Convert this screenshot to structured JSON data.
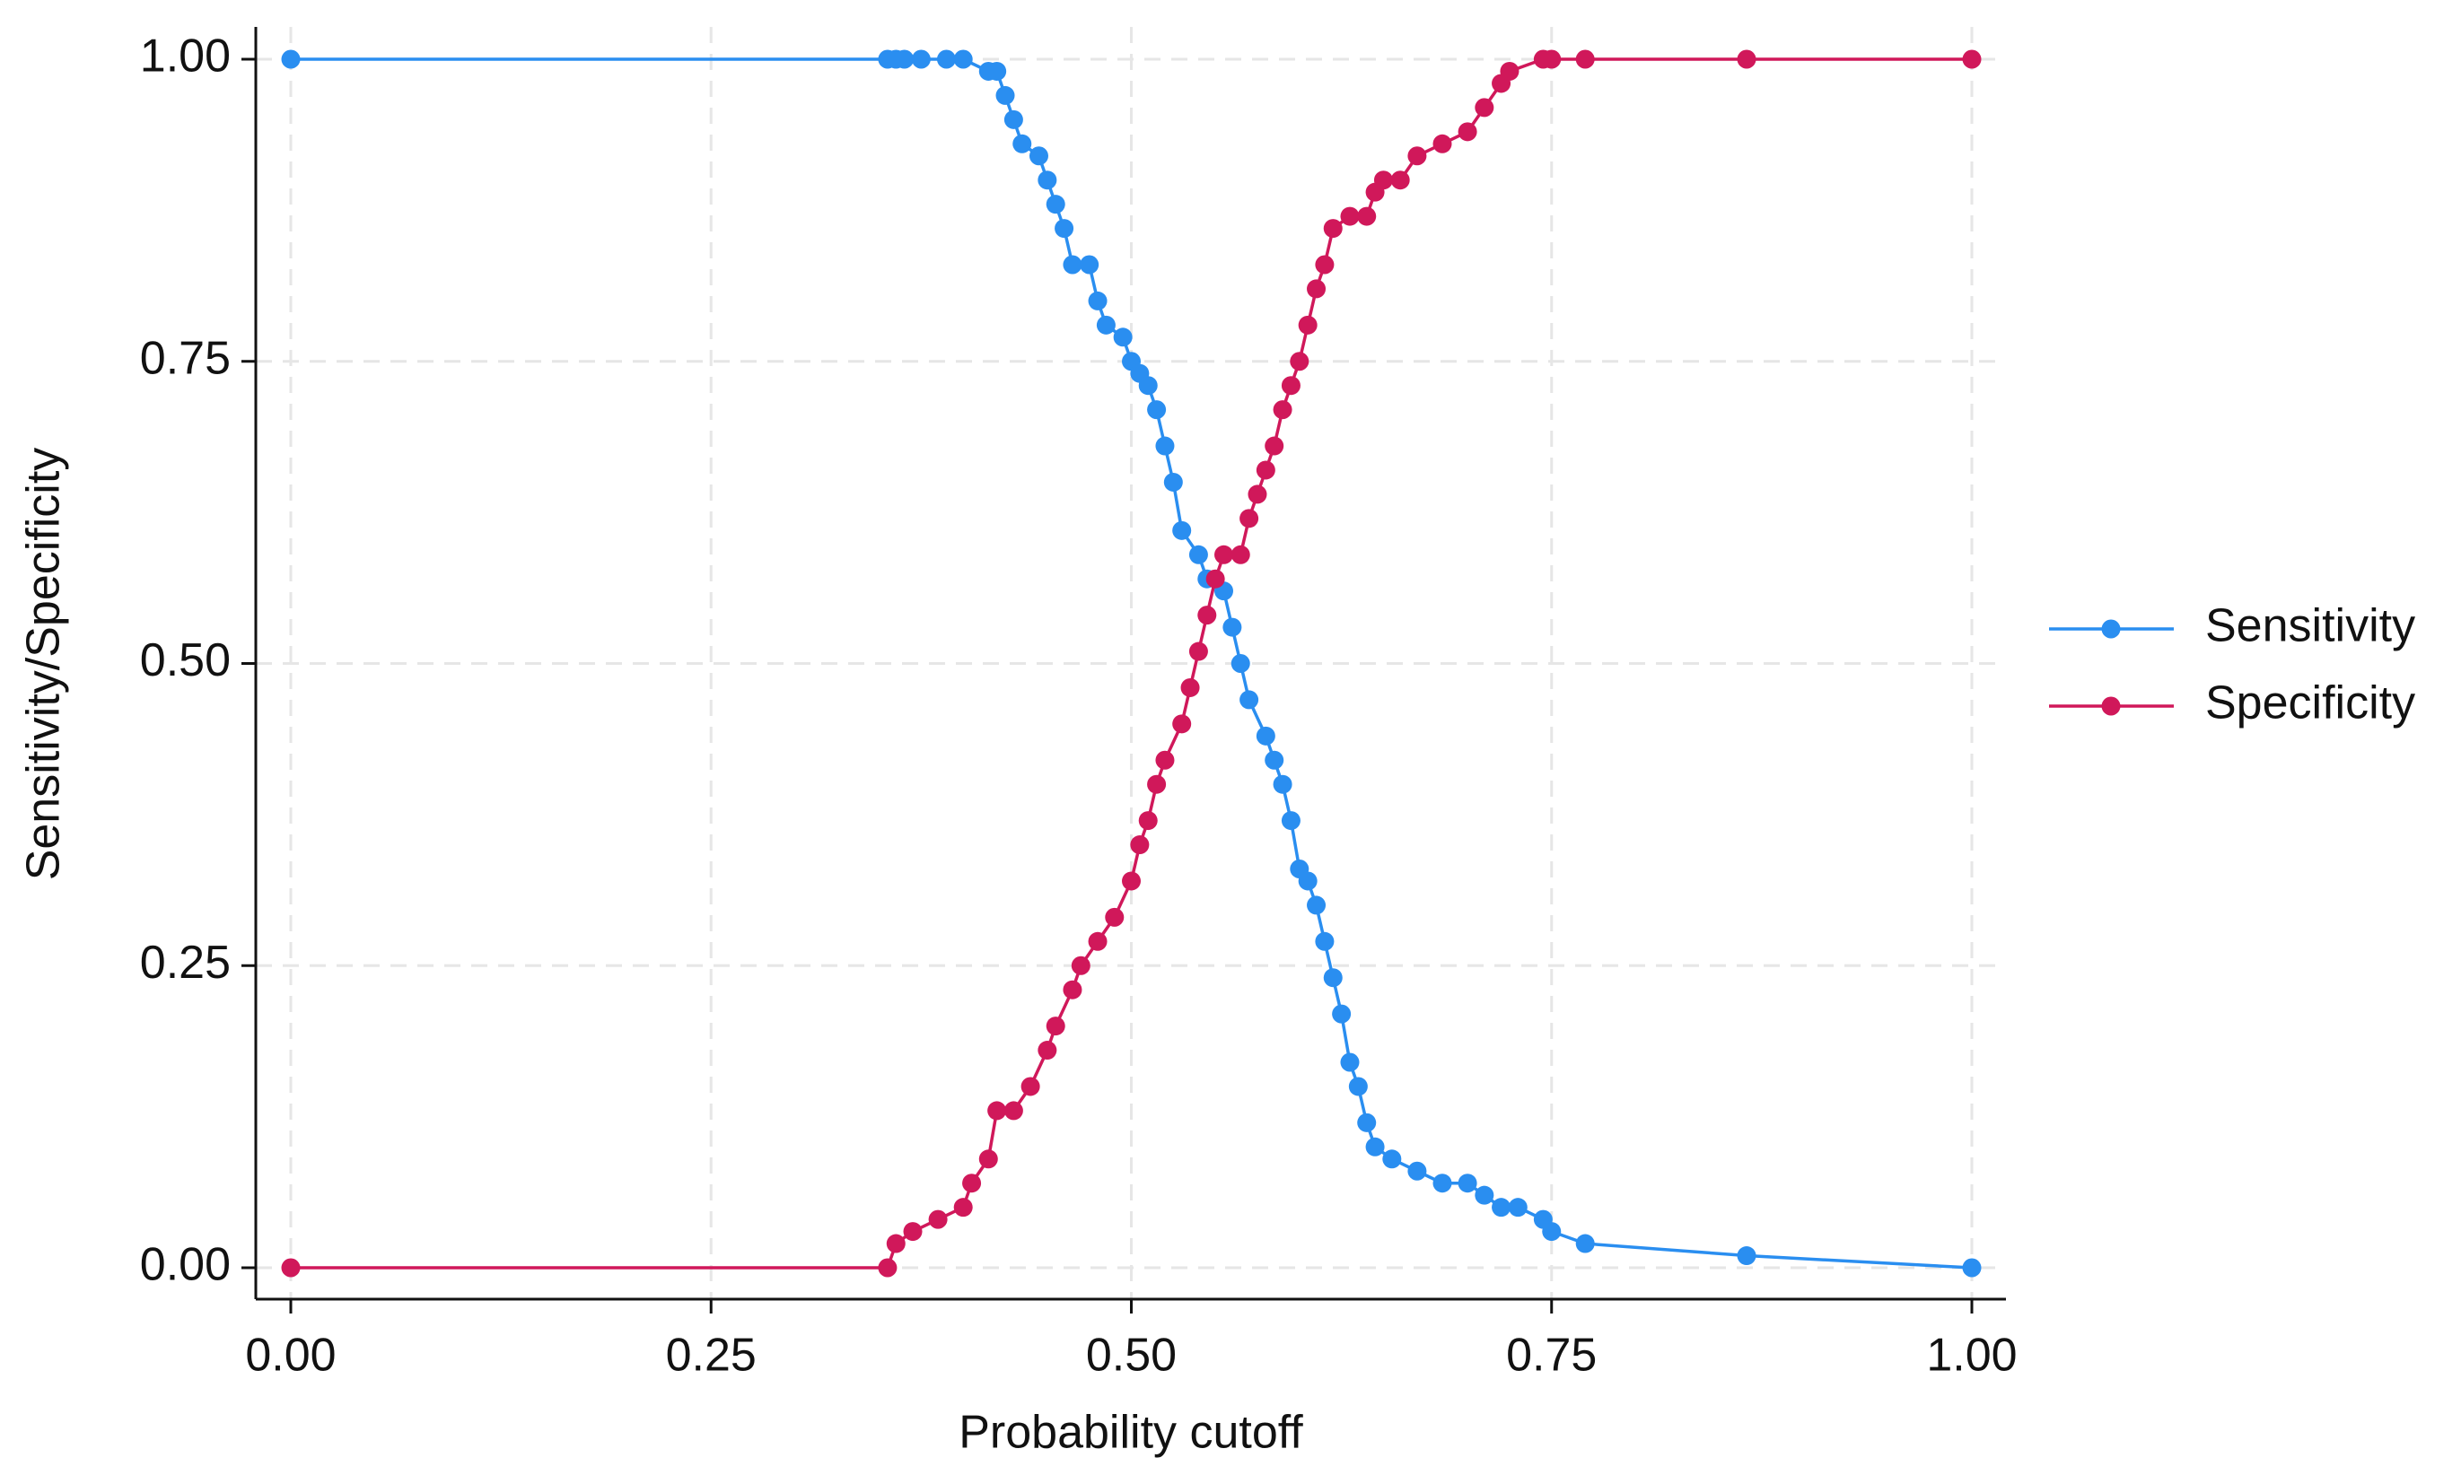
{
  "chart_data": {
    "type": "line",
    "x_label": "Probability cutoff",
    "y_label": "Sensitivity/Specificity",
    "xlim": [
      0,
      1
    ],
    "ylim": [
      0,
      1
    ],
    "xticks": [
      {
        "value": 0,
        "label": "0.00"
      },
      {
        "value": 0.25,
        "label": "0.25"
      },
      {
        "value": 0.5,
        "label": "0.50"
      },
      {
        "value": 0.75,
        "label": "0.75"
      },
      {
        "value": 1,
        "label": "1.00"
      }
    ],
    "yticks": [
      {
        "value": 0,
        "label": "0.00"
      },
      {
        "value": 0.25,
        "label": "0.25"
      },
      {
        "value": 0.5,
        "label": "0.50"
      },
      {
        "value": 0.75,
        "label": "0.75"
      },
      {
        "value": 1,
        "label": "1.00"
      }
    ],
    "grid": true,
    "legend": "right",
    "series": [
      {
        "name": "Sensitivity",
        "color": "#2a8ef0",
        "x": [
          0,
          0.355,
          0.36,
          0.365,
          0.375,
          0.39,
          0.4,
          0.415,
          0.42,
          0.425,
          0.43,
          0.435,
          0.445,
          0.45,
          0.455,
          0.46,
          0.465,
          0.475,
          0.48,
          0.485,
          0.495,
          0.5,
          0.505,
          0.51,
          0.515,
          0.52,
          0.525,
          0.53,
          0.54,
          0.545,
          0.555,
          0.56,
          0.565,
          0.57,
          0.58,
          0.585,
          0.59,
          0.595,
          0.6,
          0.605,
          0.61,
          0.615,
          0.62,
          0.625,
          0.63,
          0.635,
          0.64,
          0.645,
          0.655,
          0.67,
          0.685,
          0.7,
          0.71,
          0.72,
          0.73,
          0.745,
          0.75,
          0.77,
          0.866,
          1
        ],
        "values": [
          1,
          1,
          1,
          1,
          1,
          1,
          1,
          0.99,
          0.99,
          0.97,
          0.95,
          0.93,
          0.92,
          0.9,
          0.88,
          0.86,
          0.83,
          0.83,
          0.8,
          0.78,
          0.77,
          0.75,
          0.74,
          0.73,
          0.71,
          0.68,
          0.65,
          0.61,
          0.59,
          0.57,
          0.56,
          0.53,
          0.5,
          0.47,
          0.44,
          0.42,
          0.4,
          0.37,
          0.33,
          0.32,
          0.3,
          0.27,
          0.24,
          0.21,
          0.17,
          0.15,
          0.12,
          0.1,
          0.09,
          0.08,
          0.07,
          0.07,
          0.06,
          0.05,
          0.05,
          0.04,
          0.03,
          0.02,
          0.01,
          0
        ]
      },
      {
        "name": "Specificity",
        "color": "#d0185a",
        "x": [
          0,
          0.355,
          0.36,
          0.37,
          0.385,
          0.4,
          0.405,
          0.415,
          0.42,
          0.43,
          0.44,
          0.45,
          0.455,
          0.465,
          0.47,
          0.48,
          0.49,
          0.5,
          0.505,
          0.51,
          0.515,
          0.52,
          0.53,
          0.535,
          0.54,
          0.545,
          0.55,
          0.555,
          0.565,
          0.57,
          0.575,
          0.58,
          0.585,
          0.59,
          0.595,
          0.6,
          0.605,
          0.61,
          0.615,
          0.62,
          0.63,
          0.64,
          0.645,
          0.65,
          0.66,
          0.67,
          0.685,
          0.7,
          0.71,
          0.72,
          0.725,
          0.745,
          0.75,
          0.77,
          0.866,
          1
        ],
        "values": [
          0,
          0,
          0.02,
          0.03,
          0.04,
          0.05,
          0.07,
          0.09,
          0.13,
          0.13,
          0.15,
          0.18,
          0.2,
          0.23,
          0.25,
          0.27,
          0.29,
          0.32,
          0.35,
          0.37,
          0.4,
          0.42,
          0.45,
          0.48,
          0.51,
          0.54,
          0.57,
          0.59,
          0.59,
          0.62,
          0.64,
          0.66,
          0.68,
          0.71,
          0.73,
          0.75,
          0.78,
          0.81,
          0.83,
          0.86,
          0.87,
          0.87,
          0.89,
          0.9,
          0.9,
          0.92,
          0.93,
          0.94,
          0.96,
          0.98,
          0.99,
          1,
          1,
          1,
          1,
          1
        ]
      }
    ]
  }
}
